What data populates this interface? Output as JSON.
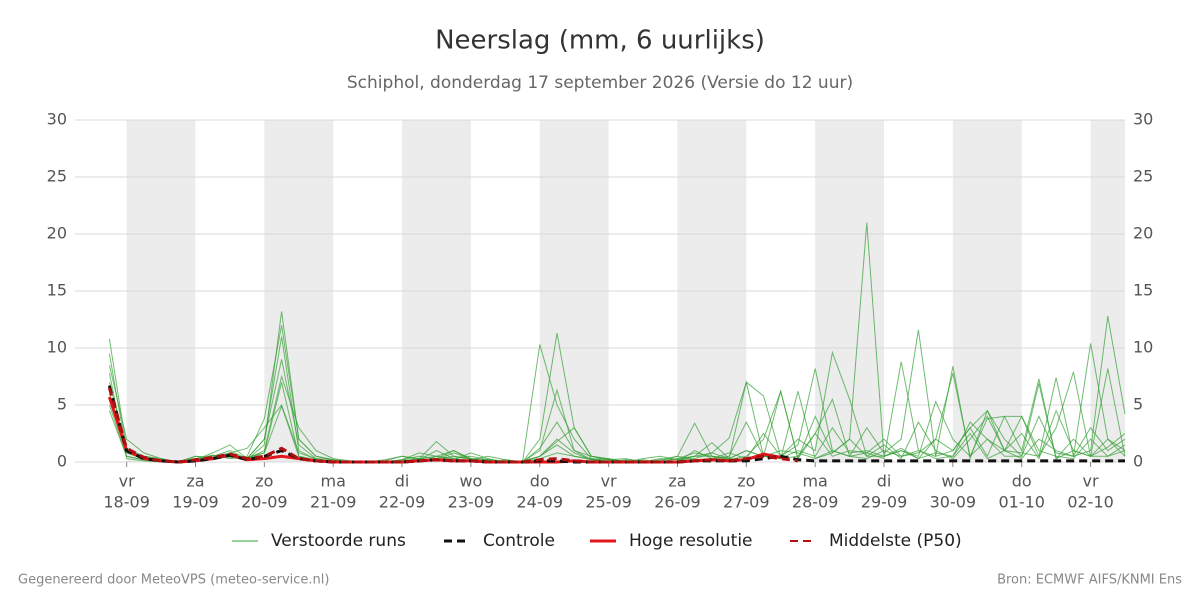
{
  "chart_data": {
    "type": "line",
    "title": "Neerslag (mm, 6 uurlijks)",
    "subtitle": "Schiphol, donderdag 17 september 2026 (Versie do 12 uur)",
    "x": [
      -0.25,
      0,
      0.25,
      0.5,
      0.75,
      1,
      1.25,
      1.5,
      1.75,
      2,
      2.25,
      2.5,
      2.75,
      3,
      3.25,
      3.5,
      3.75,
      4,
      4.25,
      4.5,
      4.75,
      5,
      5.25,
      5.5,
      5.75,
      6,
      6.25,
      6.5,
      6.75,
      7,
      7.25,
      7.5,
      7.75,
      8,
      8.25,
      8.5,
      8.75,
      9,
      9.25,
      9.5,
      9.75,
      10,
      10.25,
      10.5,
      10.75,
      11,
      11.25,
      11.5,
      11.75,
      12,
      12.25,
      12.5,
      12.75,
      13,
      13.25,
      13.5,
      13.75,
      14,
      14.25,
      14.5
    ],
    "xlim": [
      -0.75,
      14.5
    ],
    "xticks": [
      {
        "value": 0,
        "label": "vr"
      },
      {
        "value": 1,
        "label": "za"
      },
      {
        "value": 2,
        "label": "zo"
      },
      {
        "value": 3,
        "label": "ma"
      },
      {
        "value": 4,
        "label": "di"
      },
      {
        "value": 5,
        "label": "wo"
      },
      {
        "value": 6,
        "label": "do"
      },
      {
        "value": 7,
        "label": "vr"
      },
      {
        "value": 8,
        "label": "za"
      },
      {
        "value": 9,
        "label": "zo"
      },
      {
        "value": 10,
        "label": "ma"
      },
      {
        "value": 11,
        "label": "di"
      },
      {
        "value": 12,
        "label": "wo"
      },
      {
        "value": 13,
        "label": "do"
      },
      {
        "value": 14,
        "label": "vr"
      }
    ],
    "xtick_dates": [
      "18-09",
      "19-09",
      "20-09",
      "21-09",
      "22-09",
      "23-09",
      "24-09",
      "25-09",
      "26-09",
      "27-09",
      "28-09",
      "29-09",
      "30-09",
      "01-10",
      "02-10"
    ],
    "ylim": [
      0,
      30
    ],
    "yticks": [
      0,
      5,
      10,
      15,
      20,
      25,
      30
    ],
    "y2lim": [
      0,
      30
    ],
    "y2ticks": [
      0,
      5,
      10,
      15,
      20,
      25,
      30
    ],
    "grid": true,
    "shade_alternate_days": true,
    "ensemble": {
      "name": "Verstoorde runs",
      "color": "#33a033",
      "members": [
        [
          10.8,
          1.2,
          0.5,
          0.2,
          0,
          0.3,
          0.6,
          0.4,
          0.2,
          1.5,
          13.2,
          2,
          0.5,
          0.2,
          0,
          0,
          0,
          0.1,
          0.3,
          1.8,
          0.5,
          0.2,
          0,
          0.1,
          0,
          10.3,
          5,
          2,
          0.3,
          0.2,
          0.1,
          0,
          0.2,
          0.5,
          3.4,
          0.5,
          0.3,
          7,
          5.8,
          0.5,
          2,
          1,
          9.6,
          5.5,
          0.5,
          0.5,
          1.2,
          0.3,
          2,
          1,
          3,
          4.5,
          1,
          0.3,
          2,
          1,
          0.5,
          10.4,
          2,
          1
        ],
        [
          9.5,
          0.8,
          0.3,
          0.1,
          0,
          0.5,
          0.4,
          0.8,
          0.3,
          2,
          11,
          1,
          0.2,
          0.1,
          0,
          0,
          0.2,
          0.5,
          0.3,
          0.2,
          0.8,
          0.3,
          0.2,
          0,
          0,
          2,
          11.3,
          3,
          0.5,
          0.3,
          0,
          0.2,
          0,
          0.3,
          0.5,
          1.7,
          0.3,
          0.2,
          0.5,
          0.3,
          6.2,
          0.3,
          0.8,
          2,
          21,
          0.5,
          1,
          0.3,
          0.8,
          0.5,
          2.5,
          0.3,
          1,
          4,
          0.5,
          7.4,
          0.5,
          1,
          12.8,
          4.2
        ],
        [
          8.5,
          2,
          0.8,
          0.3,
          0,
          0.2,
          0.8,
          1.5,
          0.3,
          1,
          7.5,
          3,
          1,
          0.3,
          0.1,
          0,
          0,
          0.2,
          0.8,
          0.5,
          0.3,
          0.5,
          0.2,
          0,
          0.1,
          0.5,
          2,
          0.8,
          0.2,
          0.1,
          0,
          0.3,
          0.5,
          0.2,
          0.3,
          0.8,
          2.1,
          7,
          0.5,
          6.2,
          0.3,
          2.5,
          0.5,
          1,
          0.8,
          0.3,
          8.8,
          1,
          0.5,
          8.4,
          0.3,
          4.5,
          2,
          0.5,
          6.9,
          0.3,
          1,
          0.5,
          8.2,
          0.5
        ],
        [
          5,
          0.5,
          0.2,
          0,
          0,
          0.3,
          0.2,
          0.5,
          0.4,
          0.8,
          4.9,
          0.5,
          0.2,
          0,
          0,
          0,
          0.1,
          0.5,
          0.2,
          1,
          0.3,
          0,
          0.2,
          0,
          0,
          0.3,
          0.8,
          0.5,
          0.2,
          0.3,
          0,
          0,
          0.1,
          0.5,
          0.2,
          0.3,
          0.8,
          0.3,
          2.5,
          0.5,
          1.5,
          8.2,
          1,
          0.5,
          3,
          0.8,
          2,
          11.6,
          0.5,
          1,
          3,
          0.5,
          4,
          1,
          7.3,
          0.3,
          2,
          0.5,
          1.3,
          2.5
        ],
        [
          7,
          1,
          0.5,
          0.3,
          0,
          0.2,
          0.5,
          1,
          0.3,
          2,
          9,
          1.5,
          0.3,
          0.2,
          0,
          0,
          0,
          0,
          0.3,
          0.5,
          0.2,
          0.8,
          0.3,
          0,
          0,
          1,
          6.3,
          1,
          0.5,
          0.2,
          0.3,
          0,
          0,
          0.3,
          0.8,
          0.5,
          0.2,
          0.5,
          2,
          6.2,
          0.3,
          4,
          0.8,
          2,
          0.5,
          1.5,
          0.3,
          3.5,
          1,
          0.3,
          2,
          4,
          1,
          2.5,
          0.3,
          4.5,
          1,
          0.5,
          2,
          0.5
        ],
        [
          4.5,
          0.5,
          0.2,
          0.2,
          0,
          0.5,
          0.3,
          0.8,
          1.2,
          3,
          5,
          0.8,
          0.3,
          0,
          0,
          0.1,
          0,
          0.2,
          0.5,
          0.3,
          1,
          0.3,
          0,
          0.2,
          0,
          0.5,
          1.5,
          0.5,
          0.3,
          0,
          0.2,
          0.1,
          0,
          0,
          1,
          0.3,
          0.5,
          3.5,
          0.5,
          0.3,
          1,
          0.5,
          3,
          0.8,
          1,
          0.5,
          1,
          0.5,
          5.3,
          2,
          0.5,
          3.8,
          4,
          4,
          1,
          0.5,
          0.3,
          2,
          0.5,
          1.5
        ],
        [
          6,
          0.8,
          0.3,
          0,
          0,
          0.1,
          0.6,
          0.3,
          0.5,
          3.8,
          12,
          2,
          0.5,
          0.2,
          0,
          0,
          0,
          0,
          0,
          0.5,
          1,
          0.2,
          0.5,
          0.2,
          0,
          1.2,
          3.5,
          1,
          0.2,
          0,
          0,
          0,
          0.3,
          0.2,
          0.5,
          0.5,
          0.3,
          1,
          0.5,
          0.3,
          0.5,
          2.5,
          5.5,
          0.5,
          0.3,
          1,
          0.5,
          0.8,
          2,
          7.8,
          0.5,
          2,
          0.5,
          0.5,
          4,
          0.8,
          0.5,
          3,
          1,
          2
        ],
        [
          7.8,
          0.3,
          0.1,
          0,
          0,
          0.3,
          0.2,
          0.6,
          0.3,
          0.8,
          7,
          0.5,
          0.1,
          0,
          0.1,
          0,
          0,
          0.2,
          0.1,
          0.2,
          0.5,
          0.3,
          0.2,
          0,
          0,
          0.5,
          1.8,
          3,
          0.5,
          0.2,
          0,
          0,
          0,
          0.1,
          0.5,
          0.8,
          0.3,
          1,
          0.5,
          1,
          0.8,
          0.3,
          1,
          0.5,
          0.8,
          2,
          0.5,
          1,
          0.3,
          0.5,
          3.5,
          2,
          1,
          0.8,
          0.5,
          3,
          7.9,
          0.5,
          0.5,
          1
        ]
      ]
    },
    "series": [
      {
        "name": "Controle",
        "color": "#111111",
        "dash": true,
        "values": [
          6.7,
          1,
          0.3,
          0.1,
          0,
          0.1,
          0.3,
          0.6,
          0.2,
          0.5,
          1,
          0.3,
          0.1,
          0,
          0,
          0,
          0,
          0,
          0.1,
          0.2,
          0.1,
          0.1,
          0,
          0,
          0,
          0.1,
          0.1,
          0,
          0,
          0,
          0,
          0,
          0,
          0,
          0.1,
          0.1,
          0.1,
          0.1,
          0.3,
          0.5,
          0.2,
          0.1,
          0.1,
          0.1,
          0.1,
          0.1,
          0.1,
          0.1,
          0.1,
          0.1,
          0.1,
          0.1,
          0.1,
          0.1,
          0.1,
          0.1,
          0.1,
          0.1,
          0.1,
          0.1
        ]
      },
      {
        "name": "Hoge resolutie",
        "color": "#e3161b",
        "dash": false,
        "values": [
          5.7,
          1,
          0.3,
          0.1,
          0,
          0.1,
          0.3,
          0.6,
          0.2,
          0.3,
          0.5,
          0.3,
          0.1,
          0,
          0,
          0,
          0,
          0,
          0.1,
          0.2,
          0.1,
          0.1,
          0,
          0,
          0,
          0,
          0,
          0.1,
          0,
          0,
          0,
          0,
          0,
          0,
          0.1,
          0.2,
          0.1,
          0.2,
          0.7,
          0.4,
          null,
          null,
          null,
          null,
          null,
          null,
          null,
          null,
          null,
          null,
          null,
          null,
          null,
          null,
          null,
          null,
          null,
          null,
          null,
          null
        ]
      },
      {
        "name": "Middelste (P50)",
        "color": "#b01010",
        "dash": true,
        "values": [
          6.5,
          1.2,
          0.4,
          0.1,
          0,
          0.2,
          0.4,
          0.7,
          0.3,
          0.5,
          1.2,
          0.3,
          0.1,
          0,
          0,
          0,
          0,
          0,
          0.1,
          0.2,
          0.1,
          0.1,
          0,
          0,
          0,
          0.2,
          0.3,
          0.1,
          0,
          0,
          0,
          0,
          0,
          0,
          0.1,
          0.2,
          0.1,
          0.3,
          0.5,
          0.3,
          0.1,
          null,
          null,
          null,
          null,
          null,
          null,
          null,
          null,
          null,
          null,
          null,
          null,
          null,
          null,
          null,
          null,
          null,
          null,
          null
        ]
      }
    ]
  },
  "footer": {
    "left": "Gegenereerd door MeteoVPS (meteo-service.nl)",
    "right": "Bron: ECMWF AIFS/KNMI Ens"
  }
}
